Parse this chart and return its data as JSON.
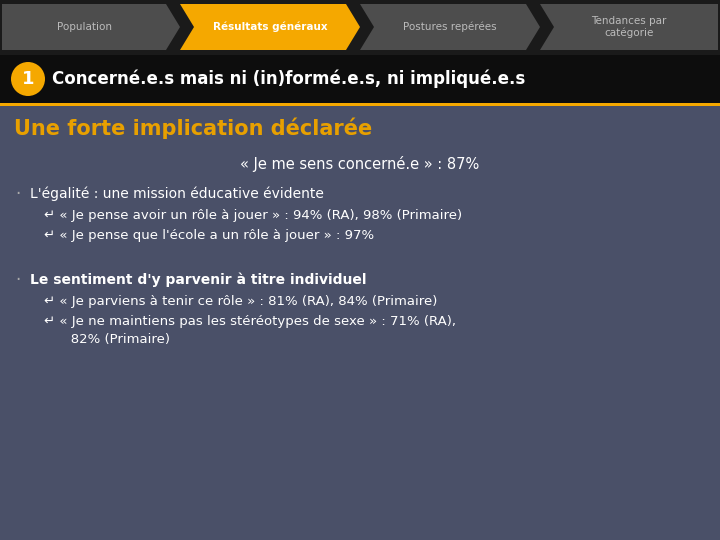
{
  "nav_items": [
    "Population",
    "Résultats généraux",
    "Postures repérées",
    "Tendances par\ncatégorie"
  ],
  "nav_active_index": 1,
  "nav_bg_color": "#4d4d4d",
  "nav_active_color": "#F5A800",
  "nav_inactive_text": "#bbbbbb",
  "nav_active_text": "#ffffff",
  "nav_bar_bg": "#1a1a1a",
  "title_bar_bg": "#0d0d0d",
  "title_text": "Concerné.e.s mais ni (in)formé.e.s, ni impliqué.e.s",
  "title_text_color": "#ffffff",
  "circle_color": "#F5A800",
  "circle_number": "1",
  "main_bg_color": "#4a5068",
  "section_title": "Une forte implication déclarée",
  "section_title_color": "#E8A000",
  "quote_line": "« Je me sens concerné.e » : 87%",
  "quote_color": "#ffffff",
  "bullet1_main": "L'égalité : une mission éducative évidente",
  "bullet1_sub1": "↵ « Je pense avoir un rôle à jouer » : 94% (RA), 98% (Primaire)",
  "bullet1_sub2": "↵ « Je pense que l'école a un rôle à jouer » : 97%",
  "bullet2_main": "Le sentiment d'y parvenir à titre individuel",
  "bullet2_sub1": "↵ « Je parviens à tenir ce rôle » : 81% (RA), 84% (Primaire)",
  "bullet2_sub2a": "↵ « Je ne maintiens pas les stéréotypes de sexe » : 71% (RA),",
  "bullet2_sub2b": "   82% (Primaire)",
  "bullet_color": "#ffffff",
  "bullet_dot_color": "#aaaaaa"
}
